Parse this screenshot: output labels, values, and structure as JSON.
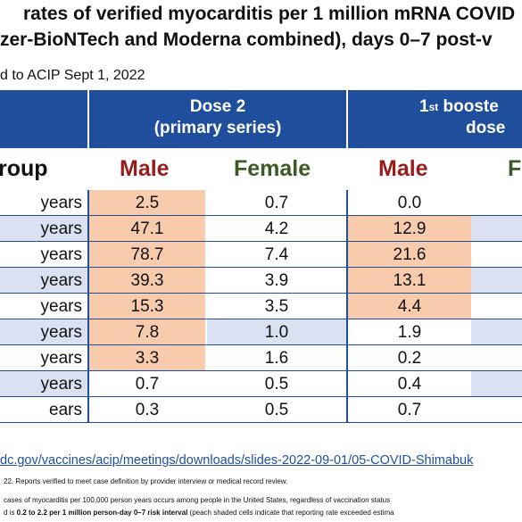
{
  "title_line1": "rates of verified myocarditis per 1 million mRNA COVID",
  "title_line2": "zer-BioNTech and Moderna combined), days 0–7 post-v",
  "subtitle": "d to ACIP Sept 1, 2022",
  "header": {
    "dose2_line1": "Dose 2",
    "dose2_line2": "(primary series)",
    "booster_sup": "st",
    "booster_pre": "1",
    "booster_line1": "booste",
    "booster_line2": "dose"
  },
  "columns": {
    "group": "roup",
    "male": "Male",
    "female": "Female",
    "male2": "Male",
    "female2": "F"
  },
  "colors": {
    "header_bg": "#1f4e9c",
    "male_text": "#9b1b1b",
    "female_text": "#3d5a26",
    "peach": "#f8cbad",
    "lightblue": "#d9e1f2"
  },
  "rows": [
    {
      "age": "years",
      "male": "2.5",
      "female": "0.7",
      "male_b": "0.0"
    },
    {
      "age": "years",
      "male": "47.1",
      "female": "4.2",
      "male_b": "12.9"
    },
    {
      "age": "years",
      "male": "78.7",
      "female": "7.4",
      "male_b": "21.6"
    },
    {
      "age": "years",
      "male": "39.3",
      "female": "3.9",
      "male_b": "13.1"
    },
    {
      "age": "years",
      "male": "15.3",
      "female": "3.5",
      "male_b": "4.4"
    },
    {
      "age": "years",
      "male": "7.8",
      "female": "1.0",
      "male_b": "1.9"
    },
    {
      "age": "years",
      "male": "3.3",
      "female": "1.6",
      "male_b": "0.2"
    },
    {
      "age": "years",
      "male": "0.7",
      "female": "0.5",
      "male_b": "0.4"
    },
    {
      "age": "ears",
      "male": "0.3",
      "female": "0.5",
      "male_b": "0.7"
    }
  ],
  "link_text": "dc.gov/vaccines/acip/meetings/downloads/slides-2022-09-01/05-COVID-Shimabuk",
  "note1": "22. Reports verified to meet case definition by provider interview or medical record review.",
  "note2": "cases of myocarditis per 100,000 person years occurs among people in the United States, regardless of vaccination status",
  "note3_pre": "d is ",
  "note3_bold": "0.2 to 2.2 per 1 million person-day 0–7 risk interval",
  "note3_post": " (peach shaded cells indicate that reporting rate exceeded estima"
}
